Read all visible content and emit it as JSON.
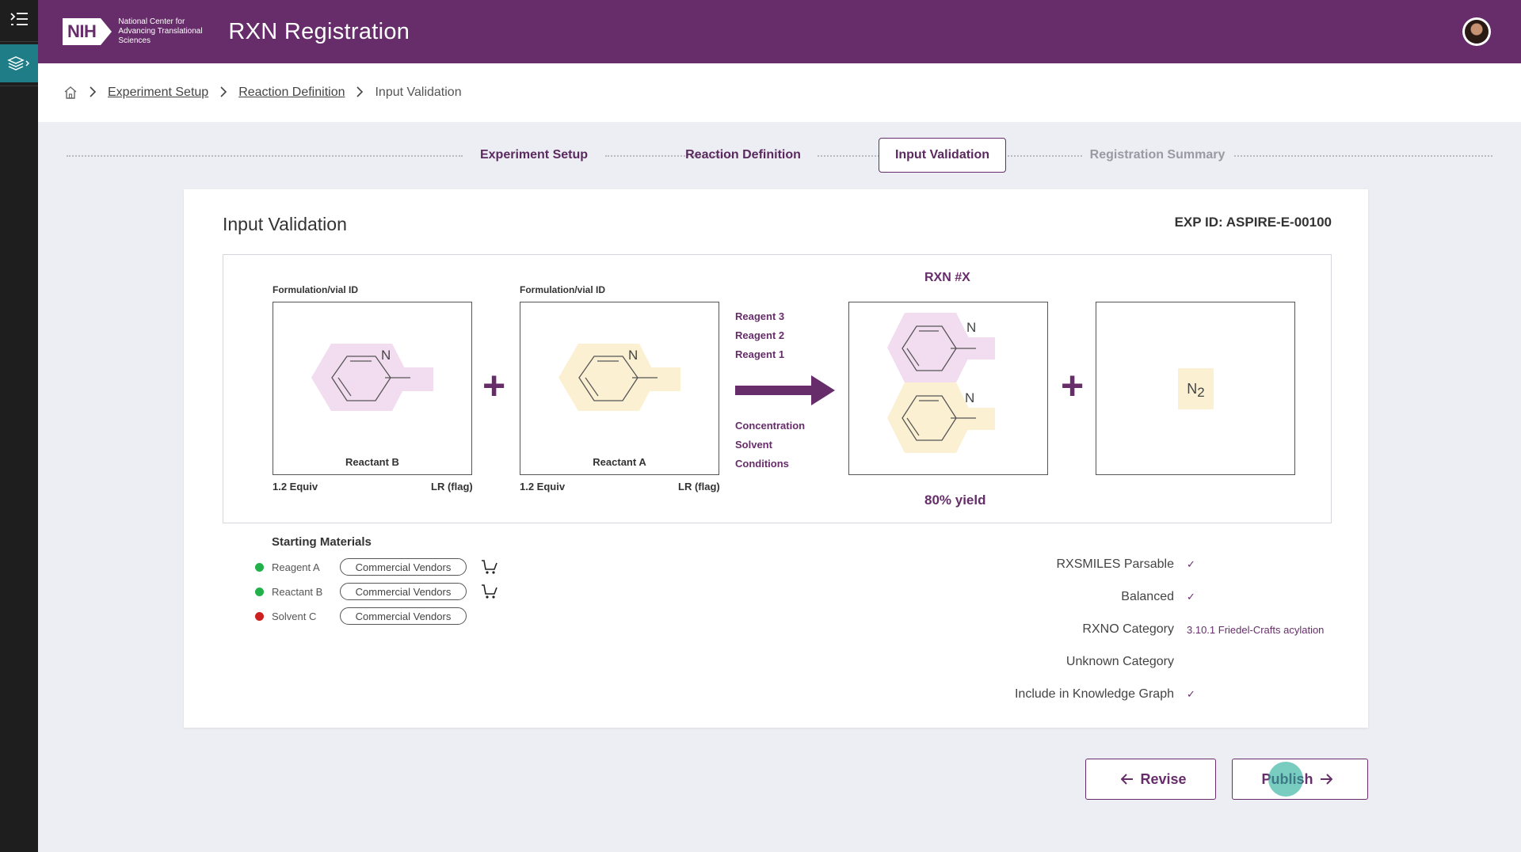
{
  "header": {
    "logo_badge": "NIH",
    "logo_text": "National Center for Advancing Translational Sciences",
    "app_title": "RXN Registration"
  },
  "breadcrumb": {
    "items": [
      "Experiment Setup",
      "Reaction Definition"
    ],
    "current": "Input Validation"
  },
  "stepper": {
    "steps": [
      {
        "label": "Experiment Setup",
        "state": "done"
      },
      {
        "label": "Reaction Definition",
        "state": "done"
      },
      {
        "label": "Input Validation",
        "state": "active"
      },
      {
        "label": "Registration Summary",
        "state": "disabled"
      }
    ]
  },
  "card": {
    "title": "Input Validation",
    "exp_id": "EXP ID: ASPIRE-E-00100"
  },
  "reaction": {
    "reactants": [
      {
        "label": "Formulation/vial ID",
        "name": "Reactant B",
        "equiv": "1.2 Equiv",
        "flag": "LR (flag)",
        "atom": "N"
      },
      {
        "label": "Formulation/vial ID",
        "name": "Reactant A",
        "equiv": "1.2 Equiv",
        "flag": "LR (flag)",
        "atom": "N"
      }
    ],
    "reagents": [
      "Reagent 3",
      "Reagent 2",
      "Reagent 1"
    ],
    "conditions": [
      "Concentration",
      "Solvent",
      "Conditions"
    ],
    "rxn_title": "RXN #X",
    "yield": "80% yield",
    "product_atoms": [
      "N",
      "N"
    ],
    "byproduct": {
      "symbol": "N",
      "subscript": "2"
    }
  },
  "starting_materials": {
    "title": "Starting Materials",
    "items": [
      {
        "name": "Reagent A",
        "status_color": "#22b04b",
        "vendor": "Commercial Vendors",
        "cart": true
      },
      {
        "name": "Reactant B",
        "status_color": "#22b04b",
        "vendor": "Commercial Vendors",
        "cart": true
      },
      {
        "name": "Solvent C",
        "status_color": "#cc1f1f",
        "vendor": "Commercial Vendors",
        "cart": false
      }
    ]
  },
  "checks": [
    {
      "label": "RXSMILES Parsable",
      "value": "✓"
    },
    {
      "label": "Balanced",
      "value": "✓"
    },
    {
      "label": "RXNO Category",
      "value": "3.10.1 Friedel-Crafts acylation"
    },
    {
      "label": "Unknown Category",
      "value": ""
    },
    {
      "label": "Include in Knowledge Graph",
      "value": "✓"
    }
  ],
  "buttons": {
    "revise": "Revise",
    "publish": "Publish"
  },
  "colors": {
    "brand": "#672d6b",
    "accent": "#1f7d88",
    "pink_highlight": "#f2dcef",
    "yellow_highlight": "#fbf0d2"
  },
  "icons": [
    "menu-icon",
    "layers-icon",
    "home-icon",
    "chevron-right-icon",
    "cart-icon",
    "check-icon",
    "arrow-left-icon",
    "arrow-right-icon"
  ]
}
